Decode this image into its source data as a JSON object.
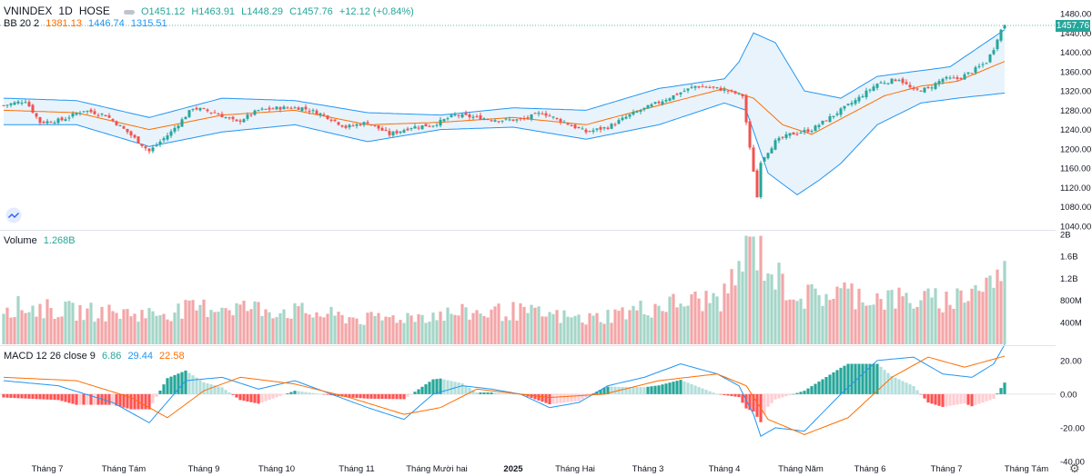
{
  "symbol": "VNINDEX",
  "interval": "1D",
  "exchange": "HOSE",
  "ohlc": {
    "open": "O1451.12",
    "high": "H1463.91",
    "low": "L1448.29",
    "close": "C1457.76",
    "change": "+12.12 (+0.84%)"
  },
  "bb": {
    "name": "BB 20 2",
    "basis": "1381.13",
    "upper": "1446.74",
    "lower": "1315.51"
  },
  "volume_legend": {
    "name": "Volume",
    "value": "1.268B"
  },
  "macd_legend": {
    "name": "MACD 12 26 close 9",
    "hist": "6.86",
    "macd": "29.44",
    "signal": "22.58"
  },
  "last_price_badge": "1457.76",
  "colors": {
    "up": "#26a69a",
    "down": "#ef5350",
    "up_vol": "#a5d6c7",
    "down_vol": "#f4a6a8",
    "bb_upper": "#2196f3",
    "bb_basis": "#ff6d00",
    "bb_fill": "#e3f0fb",
    "macd": "#2196f3",
    "signal": "#ff6d00",
    "hist_up_strong": "#26a69a",
    "hist_up_weak": "#b2dfdb",
    "hist_down_strong": "#ff5252",
    "hist_down_weak": "#ffcdd2"
  },
  "chart_data": {
    "type": "candlestick",
    "title": "VNINDEX, 1D, HOSE",
    "x_tick_labels": [
      "Tháng 7",
      "Tháng Tám",
      "Tháng 9",
      "Tháng 10",
      "Tháng 11",
      "Tháng Mười hai",
      "2025",
      "Tháng Hai",
      "Tháng 3",
      "Tháng 4",
      "Tháng Năm",
      "Tháng 6",
      "Tháng 7",
      "Tháng Tám"
    ],
    "price_axis": {
      "ylim": [
        1040,
        1480
      ],
      "ticks": [
        "1480.00",
        "1440.00",
        "1400.00",
        "1360.00",
        "1320.00",
        "1280.00",
        "1240.00",
        "1200.00",
        "1160.00",
        "1120.00",
        "1080.00",
        "1040.00"
      ]
    },
    "volume_axis": {
      "ylim_billions": [
        0,
        2
      ],
      "ticks": [
        "2B",
        "1.6B",
        "1.2B",
        "800M",
        "400M"
      ]
    },
    "macd_axis": {
      "ylim": [
        -40,
        28
      ],
      "ticks": [
        "20.00",
        "0.00",
        "-20.00",
        "-40.00"
      ]
    },
    "close_anchors": [
      [
        0,
        1290
      ],
      [
        6,
        1300
      ],
      [
        10,
        1255
      ],
      [
        16,
        1260
      ],
      [
        22,
        1280
      ],
      [
        28,
        1270
      ],
      [
        34,
        1235
      ],
      [
        40,
        1195
      ],
      [
        46,
        1235
      ],
      [
        52,
        1285
      ],
      [
        58,
        1275
      ],
      [
        64,
        1255
      ],
      [
        70,
        1280
      ],
      [
        76,
        1285
      ],
      [
        82,
        1285
      ],
      [
        88,
        1270
      ],
      [
        94,
        1245
      ],
      [
        100,
        1255
      ],
      [
        106,
        1230
      ],
      [
        112,
        1245
      ],
      [
        118,
        1250
      ],
      [
        124,
        1270
      ],
      [
        130,
        1265
      ],
      [
        136,
        1260
      ],
      [
        142,
        1260
      ],
      [
        148,
        1275
      ],
      [
        154,
        1255
      ],
      [
        160,
        1235
      ],
      [
        166,
        1245
      ],
      [
        172,
        1270
      ],
      [
        178,
        1290
      ],
      [
        184,
        1310
      ],
      [
        190,
        1330
      ],
      [
        196,
        1325
      ],
      [
        200,
        1318
      ],
      [
        203,
        1310
      ],
      [
        205,
        1200
      ],
      [
        206,
        1155
      ],
      [
        207,
        1100
      ],
      [
        208,
        1175
      ],
      [
        210,
        1195
      ],
      [
        212,
        1215
      ],
      [
        216,
        1230
      ],
      [
        222,
        1240
      ],
      [
        228,
        1270
      ],
      [
        234,
        1300
      ],
      [
        240,
        1335
      ],
      [
        246,
        1345
      ],
      [
        250,
        1320
      ],
      [
        254,
        1325
      ],
      [
        258,
        1345
      ],
      [
        262,
        1345
      ],
      [
        266,
        1360
      ],
      [
        270,
        1380
      ],
      [
        272,
        1408
      ],
      [
        273,
        1430
      ],
      [
        274,
        1446
      ],
      [
        275,
        1457.76
      ]
    ],
    "bollinger": {
      "upper_anchors": [
        [
          0,
          1305
        ],
        [
          20,
          1300
        ],
        [
          40,
          1265
        ],
        [
          60,
          1305
        ],
        [
          80,
          1300
        ],
        [
          100,
          1275
        ],
        [
          120,
          1270
        ],
        [
          140,
          1285
        ],
        [
          160,
          1280
        ],
        [
          180,
          1325
        ],
        [
          198,
          1345
        ],
        [
          202,
          1380
        ],
        [
          206,
          1440
        ],
        [
          212,
          1420
        ],
        [
          220,
          1320
        ],
        [
          230,
          1305
        ],
        [
          240,
          1350
        ],
        [
          250,
          1360
        ],
        [
          260,
          1370
        ],
        [
          275,
          1446.74
        ]
      ],
      "basis_anchors": [
        [
          0,
          1280
        ],
        [
          20,
          1275
        ],
        [
          40,
          1240
        ],
        [
          60,
          1270
        ],
        [
          80,
          1280
        ],
        [
          100,
          1250
        ],
        [
          120,
          1255
        ],
        [
          140,
          1265
        ],
        [
          160,
          1250
        ],
        [
          180,
          1290
        ],
        [
          198,
          1325
        ],
        [
          206,
          1305
        ],
        [
          214,
          1250
        ],
        [
          222,
          1230
        ],
        [
          232,
          1270
        ],
        [
          242,
          1310
        ],
        [
          252,
          1330
        ],
        [
          262,
          1340
        ],
        [
          275,
          1381.13
        ]
      ],
      "lower_anchors": [
        [
          0,
          1250
        ],
        [
          20,
          1250
        ],
        [
          40,
          1205
        ],
        [
          60,
          1235
        ],
        [
          80,
          1250
        ],
        [
          100,
          1215
        ],
        [
          120,
          1240
        ],
        [
          140,
          1245
        ],
        [
          160,
          1220
        ],
        [
          180,
          1250
        ],
        [
          198,
          1295
        ],
        [
          204,
          1280
        ],
        [
          210,
          1150
        ],
        [
          218,
          1105
        ],
        [
          224,
          1135
        ],
        [
          230,
          1170
        ],
        [
          240,
          1250
        ],
        [
          252,
          1295
        ],
        [
          262,
          1305
        ],
        [
          275,
          1315.51
        ]
      ]
    },
    "volume_anchors_billions": [
      [
        0,
        0.7
      ],
      [
        20,
        0.6
      ],
      [
        40,
        0.55
      ],
      [
        60,
        0.7
      ],
      [
        80,
        0.6
      ],
      [
        100,
        0.45
      ],
      [
        120,
        0.55
      ],
      [
        140,
        0.6
      ],
      [
        160,
        0.45
      ],
      [
        180,
        0.7
      ],
      [
        198,
        0.85
      ],
      [
        203,
        1.5
      ],
      [
        206,
        1.85
      ],
      [
        210,
        1.4
      ],
      [
        214,
        1.1
      ],
      [
        220,
        0.85
      ],
      [
        230,
        0.95
      ],
      [
        240,
        0.85
      ],
      [
        250,
        0.8
      ],
      [
        260,
        0.8
      ],
      [
        270,
        1.1
      ],
      [
        275,
        1.268
      ]
    ],
    "macd_anchors": [
      [
        0,
        8
      ],
      [
        15,
        5
      ],
      [
        30,
        -5
      ],
      [
        40,
        -17
      ],
      [
        50,
        8
      ],
      [
        60,
        10
      ],
      [
        70,
        3
      ],
      [
        80,
        8
      ],
      [
        90,
        0
      ],
      [
        100,
        -8
      ],
      [
        110,
        -15
      ],
      [
        118,
        0
      ],
      [
        126,
        5
      ],
      [
        134,
        3
      ],
      [
        142,
        0
      ],
      [
        150,
        -8
      ],
      [
        158,
        -5
      ],
      [
        166,
        5
      ],
      [
        176,
        10
      ],
      [
        186,
        18
      ],
      [
        196,
        12
      ],
      [
        202,
        5
      ],
      [
        206,
        -12
      ],
      [
        208,
        -25
      ],
      [
        212,
        -20
      ],
      [
        220,
        -22
      ],
      [
        230,
        0
      ],
      [
        240,
        20
      ],
      [
        250,
        22
      ],
      [
        258,
        12
      ],
      [
        266,
        10
      ],
      [
        272,
        18
      ],
      [
        275,
        29.44
      ]
    ],
    "signal_anchors": [
      [
        0,
        10
      ],
      [
        20,
        8
      ],
      [
        35,
        -2
      ],
      [
        45,
        -14
      ],
      [
        55,
        2
      ],
      [
        65,
        10
      ],
      [
        80,
        6
      ],
      [
        95,
        -2
      ],
      [
        110,
        -12
      ],
      [
        120,
        -8
      ],
      [
        130,
        3
      ],
      [
        150,
        -2
      ],
      [
        165,
        0
      ],
      [
        180,
        8
      ],
      [
        196,
        12
      ],
      [
        204,
        5
      ],
      [
        210,
        -15
      ],
      [
        220,
        -24
      ],
      [
        232,
        -14
      ],
      [
        244,
        10
      ],
      [
        254,
        22
      ],
      [
        264,
        16
      ],
      [
        275,
        22.58
      ]
    ],
    "last_histogram": 6.86
  }
}
